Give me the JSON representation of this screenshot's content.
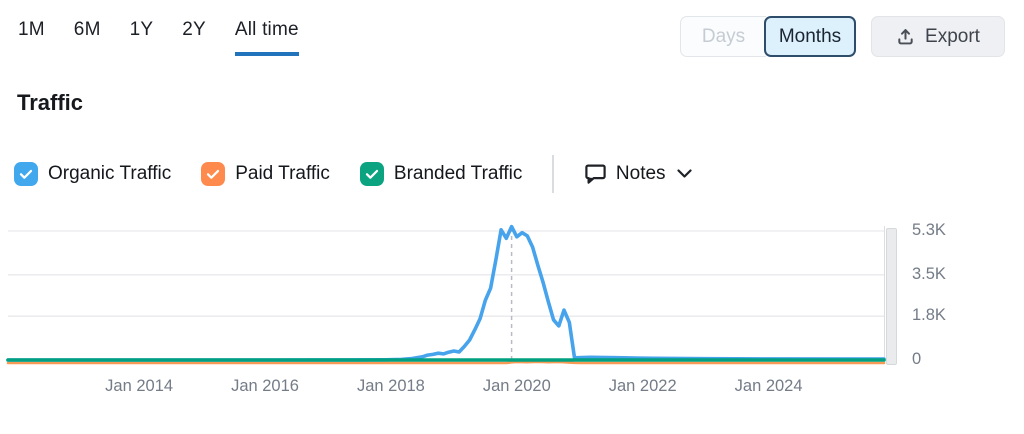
{
  "header": {
    "ranges": [
      {
        "label": "1M",
        "selected": false
      },
      {
        "label": "6M",
        "selected": false
      },
      {
        "label": "1Y",
        "selected": false
      },
      {
        "label": "2Y",
        "selected": false
      },
      {
        "label": "All time",
        "selected": true
      }
    ],
    "granularity": {
      "options": [
        "Days",
        "Months"
      ],
      "selected": "Months"
    },
    "export_label": "Export"
  },
  "section": {
    "title": "Traffic"
  },
  "legend": {
    "items": [
      {
        "label": "Organic Traffic",
        "checked": true,
        "color": "#41a8ee"
      },
      {
        "label": "Paid Traffic",
        "checked": true,
        "color": "#ff8a4d"
      },
      {
        "label": "Branded Traffic",
        "checked": true,
        "color": "#0ba380"
      }
    ],
    "notes_label": "Notes"
  },
  "chart_data": {
    "type": "line",
    "title": "Traffic",
    "grid": true,
    "legend_position": "top",
    "x_axis": {
      "start": "2011-12",
      "end": "2025-11",
      "ticks": [
        {
          "date": "2014-01",
          "label": "Jan 2014"
        },
        {
          "date": "2016-01",
          "label": "Jan 2016"
        },
        {
          "date": "2018-01",
          "label": "Jan 2018"
        },
        {
          "date": "2020-01",
          "label": "Jan 2020"
        },
        {
          "date": "2022-01",
          "label": "Jan 2022"
        },
        {
          "date": "2024-01",
          "label": "Jan 2024"
        }
      ]
    },
    "y_axis": {
      "max": 5300,
      "ticks": [
        {
          "value": 5300,
          "label": "5.3K"
        },
        {
          "value": 3500,
          "label": "3.5K"
        },
        {
          "value": 1800,
          "label": "1.8K"
        },
        {
          "value": 0,
          "label": "0"
        }
      ]
    },
    "note_marker": {
      "date": "2019-12",
      "style": "dashed-vertical"
    },
    "series": [
      {
        "name": "Organic Traffic",
        "color": "#47a3ec",
        "points": [
          [
            "2011-12",
            0
          ],
          [
            "2014-01",
            0
          ],
          [
            "2016-01",
            0
          ],
          [
            "2017-06",
            5
          ],
          [
            "2017-12",
            10
          ],
          [
            "2018-03",
            25
          ],
          [
            "2018-05",
            60
          ],
          [
            "2018-07",
            130
          ],
          [
            "2018-08",
            200
          ],
          [
            "2018-09",
            230
          ],
          [
            "2018-10",
            280
          ],
          [
            "2018-11",
            250
          ],
          [
            "2018-12",
            320
          ],
          [
            "2019-01",
            370
          ],
          [
            "2019-02",
            330
          ],
          [
            "2019-03",
            560
          ],
          [
            "2019-04",
            820
          ],
          [
            "2019-05",
            1250
          ],
          [
            "2019-06",
            1700
          ],
          [
            "2019-07",
            2450
          ],
          [
            "2019-08",
            2950
          ],
          [
            "2019-09",
            4100
          ],
          [
            "2019-10",
            5350
          ],
          [
            "2019-11",
            5000
          ],
          [
            "2019-12",
            5480
          ],
          [
            "2020-01",
            5060
          ],
          [
            "2020-02",
            5230
          ],
          [
            "2020-03",
            5100
          ],
          [
            "2020-04",
            4640
          ],
          [
            "2020-05",
            3900
          ],
          [
            "2020-06",
            3200
          ],
          [
            "2020-07",
            2400
          ],
          [
            "2020-08",
            1650
          ],
          [
            "2020-09",
            1400
          ],
          [
            "2020-10",
            2050
          ],
          [
            "2020-11",
            1550
          ],
          [
            "2020-12",
            90
          ],
          [
            "2021-03",
            110
          ],
          [
            "2021-08",
            95
          ],
          [
            "2022-03",
            70
          ],
          [
            "2023-01",
            55
          ],
          [
            "2024-01",
            45
          ],
          [
            "2025-11",
            40
          ]
        ]
      },
      {
        "name": "Paid Traffic",
        "color": "#f79a55",
        "points": [
          [
            "2011-12",
            0
          ],
          [
            "2019-11",
            0
          ],
          [
            "2019-12",
            25
          ],
          [
            "2020-01",
            40
          ],
          [
            "2020-03",
            30
          ],
          [
            "2020-05",
            45
          ],
          [
            "2020-07",
            28
          ],
          [
            "2020-09",
            42
          ],
          [
            "2020-10",
            30
          ],
          [
            "2020-11",
            18
          ],
          [
            "2020-12",
            5
          ],
          [
            "2021-01",
            0
          ],
          [
            "2025-11",
            0
          ]
        ]
      },
      {
        "name": "Branded Traffic",
        "color": "#00a081",
        "points": [
          [
            "2011-12",
            0
          ],
          [
            "2025-11",
            0
          ]
        ]
      }
    ]
  }
}
